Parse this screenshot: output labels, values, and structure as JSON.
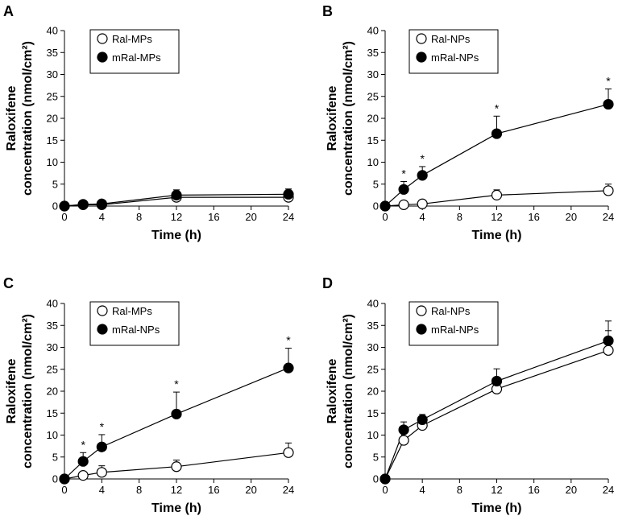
{
  "chart_data": [
    {
      "type": "line",
      "panel": "A",
      "xlabel": "Time (h)",
      "ylabel_line1": "Raloxifene",
      "ylabel_line2": "concentration (nmol/cm²)",
      "xlim": [
        0,
        24
      ],
      "ylim": [
        0,
        40
      ],
      "xticks": [
        0,
        4,
        8,
        12,
        16,
        20,
        24
      ],
      "yticks": [
        0,
        5,
        10,
        15,
        20,
        25,
        30,
        35,
        40
      ],
      "x": [
        0,
        2,
        4,
        12,
        24
      ],
      "series": [
        {
          "name": "Ral-MPs",
          "marker": "open",
          "values": [
            0,
            0.3,
            0.3,
            2.0,
            2.0
          ],
          "errors": [
            0,
            0.8,
            0.8,
            1.0,
            1.0
          ],
          "significance": [
            "",
            "",
            "",
            "",
            ""
          ]
        },
        {
          "name": "mRal-MPs",
          "marker": "filled",
          "values": [
            0,
            0.4,
            0.5,
            2.5,
            2.7
          ],
          "errors": [
            0,
            0.8,
            0.8,
            1.2,
            1.2
          ],
          "significance": [
            "",
            "",
            "",
            "",
            ""
          ]
        }
      ]
    },
    {
      "type": "line",
      "panel": "B",
      "xlabel": "Time (h)",
      "ylabel_line1": "Raloxifene",
      "ylabel_line2": "concentration (nmol/cm²)",
      "xlim": [
        0,
        24
      ],
      "ylim": [
        0,
        40
      ],
      "xticks": [
        0,
        4,
        8,
        12,
        16,
        20,
        24
      ],
      "yticks": [
        0,
        5,
        10,
        15,
        20,
        25,
        30,
        35,
        40
      ],
      "x": [
        0,
        2,
        4,
        12,
        24
      ],
      "series": [
        {
          "name": "Ral-NPs",
          "marker": "open",
          "values": [
            0,
            0.3,
            0.5,
            2.5,
            3.5
          ],
          "errors": [
            0,
            0.5,
            0.5,
            1.2,
            1.5
          ],
          "significance": [
            "",
            "",
            "",
            "",
            ""
          ]
        },
        {
          "name": "mRal-NPs",
          "marker": "filled",
          "values": [
            0,
            3.8,
            7.0,
            16.5,
            23.2
          ],
          "errors": [
            0,
            1.8,
            2.0,
            4.0,
            3.5
          ],
          "significance": [
            "",
            "*",
            "*",
            "*",
            "*"
          ]
        }
      ]
    },
    {
      "type": "line",
      "panel": "C",
      "xlabel": "Time (h)",
      "ylabel_line1": "Raloxifene",
      "ylabel_line2": "concentration (nmol/cm²)",
      "xlim": [
        0,
        24
      ],
      "ylim": [
        0,
        40
      ],
      "xticks": [
        0,
        4,
        8,
        12,
        16,
        20,
        24
      ],
      "yticks": [
        0,
        5,
        10,
        15,
        20,
        25,
        30,
        35,
        40
      ],
      "x": [
        0,
        2,
        4,
        12,
        24
      ],
      "series": [
        {
          "name": "Ral-MPs",
          "marker": "open",
          "values": [
            0,
            0.8,
            1.5,
            2.8,
            6.0
          ],
          "errors": [
            0,
            0.5,
            1.5,
            1.5,
            2.2
          ],
          "significance": [
            "",
            "",
            "",
            "",
            ""
          ]
        },
        {
          "name": "mRal-NPs",
          "marker": "filled",
          "values": [
            0,
            4.0,
            7.3,
            14.8,
            25.3
          ],
          "errors": [
            0,
            2.0,
            2.8,
            5.0,
            4.5
          ],
          "significance": [
            "",
            "*",
            "*",
            "*",
            "*"
          ]
        }
      ]
    },
    {
      "type": "line",
      "panel": "D",
      "xlabel": "Time (h)",
      "ylabel_line1": "Raloxifene",
      "ylabel_line2": "concentration (nmol/cm²)",
      "xlim": [
        0,
        24
      ],
      "ylim": [
        0,
        40
      ],
      "xticks": [
        0,
        4,
        8,
        12,
        16,
        20,
        24
      ],
      "yticks": [
        0,
        5,
        10,
        15,
        20,
        25,
        30,
        35,
        40
      ],
      "x": [
        0,
        2,
        4,
        12,
        24
      ],
      "series": [
        {
          "name": "Ral-NPs",
          "marker": "open",
          "values": [
            0,
            8.8,
            12.2,
            20.5,
            29.3
          ],
          "errors": [
            0,
            0.5,
            0.5,
            0.5,
            4.5
          ],
          "significance": [
            "",
            "",
            "",
            "",
            ""
          ]
        },
        {
          "name": "mRal-NPs",
          "marker": "filled",
          "values": [
            0,
            11.2,
            13.5,
            22.3,
            31.5
          ],
          "errors": [
            0,
            1.8,
            1.2,
            2.8,
            4.5
          ],
          "significance": [
            "",
            "",
            "",
            "",
            ""
          ]
        }
      ]
    }
  ]
}
